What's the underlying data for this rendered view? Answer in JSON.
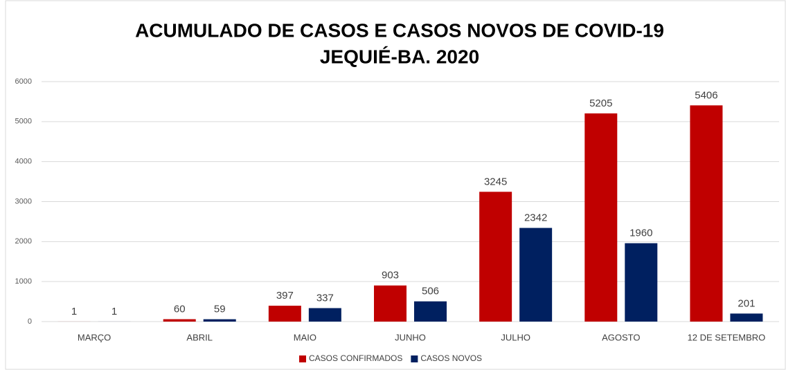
{
  "chart_data": {
    "type": "bar",
    "title": [
      "ACUMULADO DE CASOS E CASOS NOVOS DE COVID-19",
      "JEQUIÉ-BA. 2020"
    ],
    "categories": [
      "MARÇO",
      "ABRIL",
      "MAIO",
      "JUNHO",
      "JULHO",
      "AGOSTO",
      "12 DE SETEMBRO"
    ],
    "series": [
      {
        "name": "CASOS CONFIRMADOS",
        "color": "#c00000",
        "values": [
          1,
          60,
          397,
          903,
          3245,
          5205,
          5406
        ]
      },
      {
        "name": "CASOS NOVOS",
        "color": "#002060",
        "values": [
          1,
          59,
          337,
          506,
          2342,
          1960,
          201
        ]
      }
    ],
    "ylim": [
      0,
      6000
    ],
    "yticks": [
      0,
      1000,
      2000,
      3000,
      4000,
      5000,
      6000
    ],
    "grid": true,
    "legend": "bottom"
  }
}
